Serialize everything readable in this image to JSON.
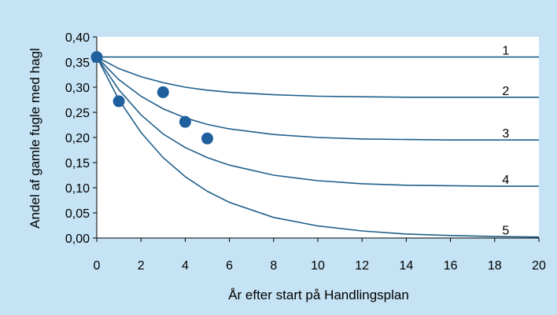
{
  "chart_data": {
    "type": "line",
    "title": "",
    "xlabel": "År efter start på Handlingsplan",
    "ylabel": "Andel af gamle fugle med hagl",
    "xlim": [
      0,
      20
    ],
    "ylim": [
      0,
      0.4
    ],
    "x_ticks": [
      0,
      2,
      4,
      6,
      8,
      10,
      12,
      14,
      16,
      18,
      20
    ],
    "x_tick_labels": [
      "0",
      "2",
      "4",
      "6",
      "8",
      "10",
      "12",
      "14",
      "16",
      "18",
      "20"
    ],
    "y_ticks": [
      0,
      0.05,
      0.1,
      0.15,
      0.2,
      0.25,
      0.3,
      0.35,
      0.4
    ],
    "y_tick_labels": [
      "0,00",
      "0,05",
      "0,10",
      "0,15",
      "0,20",
      "0,25",
      "0,30",
      "0,35",
      "0,40"
    ],
    "grid": false,
    "legend": "none",
    "series": [
      {
        "label": "1",
        "color": "#1f5f8b",
        "x": [
          0,
          2,
          4,
          6,
          8,
          10,
          12,
          14,
          16,
          18,
          20
        ],
        "y": [
          0.36,
          0.36,
          0.36,
          0.36,
          0.36,
          0.36,
          0.36,
          0.36,
          0.36,
          0.36,
          0.36
        ]
      },
      {
        "label": "2",
        "color": "#1f5f8b",
        "x": [
          0,
          1,
          2,
          3,
          4,
          5,
          6,
          8,
          10,
          12,
          14,
          16,
          18,
          20
        ],
        "y": [
          0.36,
          0.337,
          0.321,
          0.309,
          0.3,
          0.294,
          0.29,
          0.285,
          0.282,
          0.281,
          0.28,
          0.28,
          0.28,
          0.28
        ]
      },
      {
        "label": "3",
        "color": "#1f5f8b",
        "x": [
          0,
          1,
          2,
          3,
          4,
          5,
          6,
          8,
          10,
          12,
          14,
          16,
          18,
          20
        ],
        "y": [
          0.36,
          0.315,
          0.282,
          0.257,
          0.239,
          0.226,
          0.217,
          0.206,
          0.2,
          0.197,
          0.196,
          0.195,
          0.195,
          0.195
        ]
      },
      {
        "label": "4",
        "color": "#1f5f8b",
        "x": [
          0,
          1,
          2,
          3,
          4,
          5,
          6,
          8,
          10,
          12,
          14,
          16,
          18,
          20
        ],
        "y": [
          0.36,
          0.295,
          0.245,
          0.207,
          0.18,
          0.16,
          0.145,
          0.125,
          0.114,
          0.108,
          0.105,
          0.104,
          0.103,
          0.103
        ]
      },
      {
        "label": "5",
        "color": "#1f5f8b",
        "x": [
          0,
          1,
          2,
          3,
          4,
          5,
          6,
          8,
          10,
          12,
          14,
          16,
          18,
          20
        ],
        "y": [
          0.36,
          0.275,
          0.21,
          0.16,
          0.122,
          0.093,
          0.071,
          0.041,
          0.024,
          0.014,
          0.008,
          0.005,
          0.003,
          0.002
        ]
      }
    ],
    "points": {
      "color": "#1f5f9e",
      "x": [
        0,
        1,
        3,
        4,
        5
      ],
      "y": [
        0.36,
        0.272,
        0.29,
        0.231,
        0.198
      ]
    }
  }
}
